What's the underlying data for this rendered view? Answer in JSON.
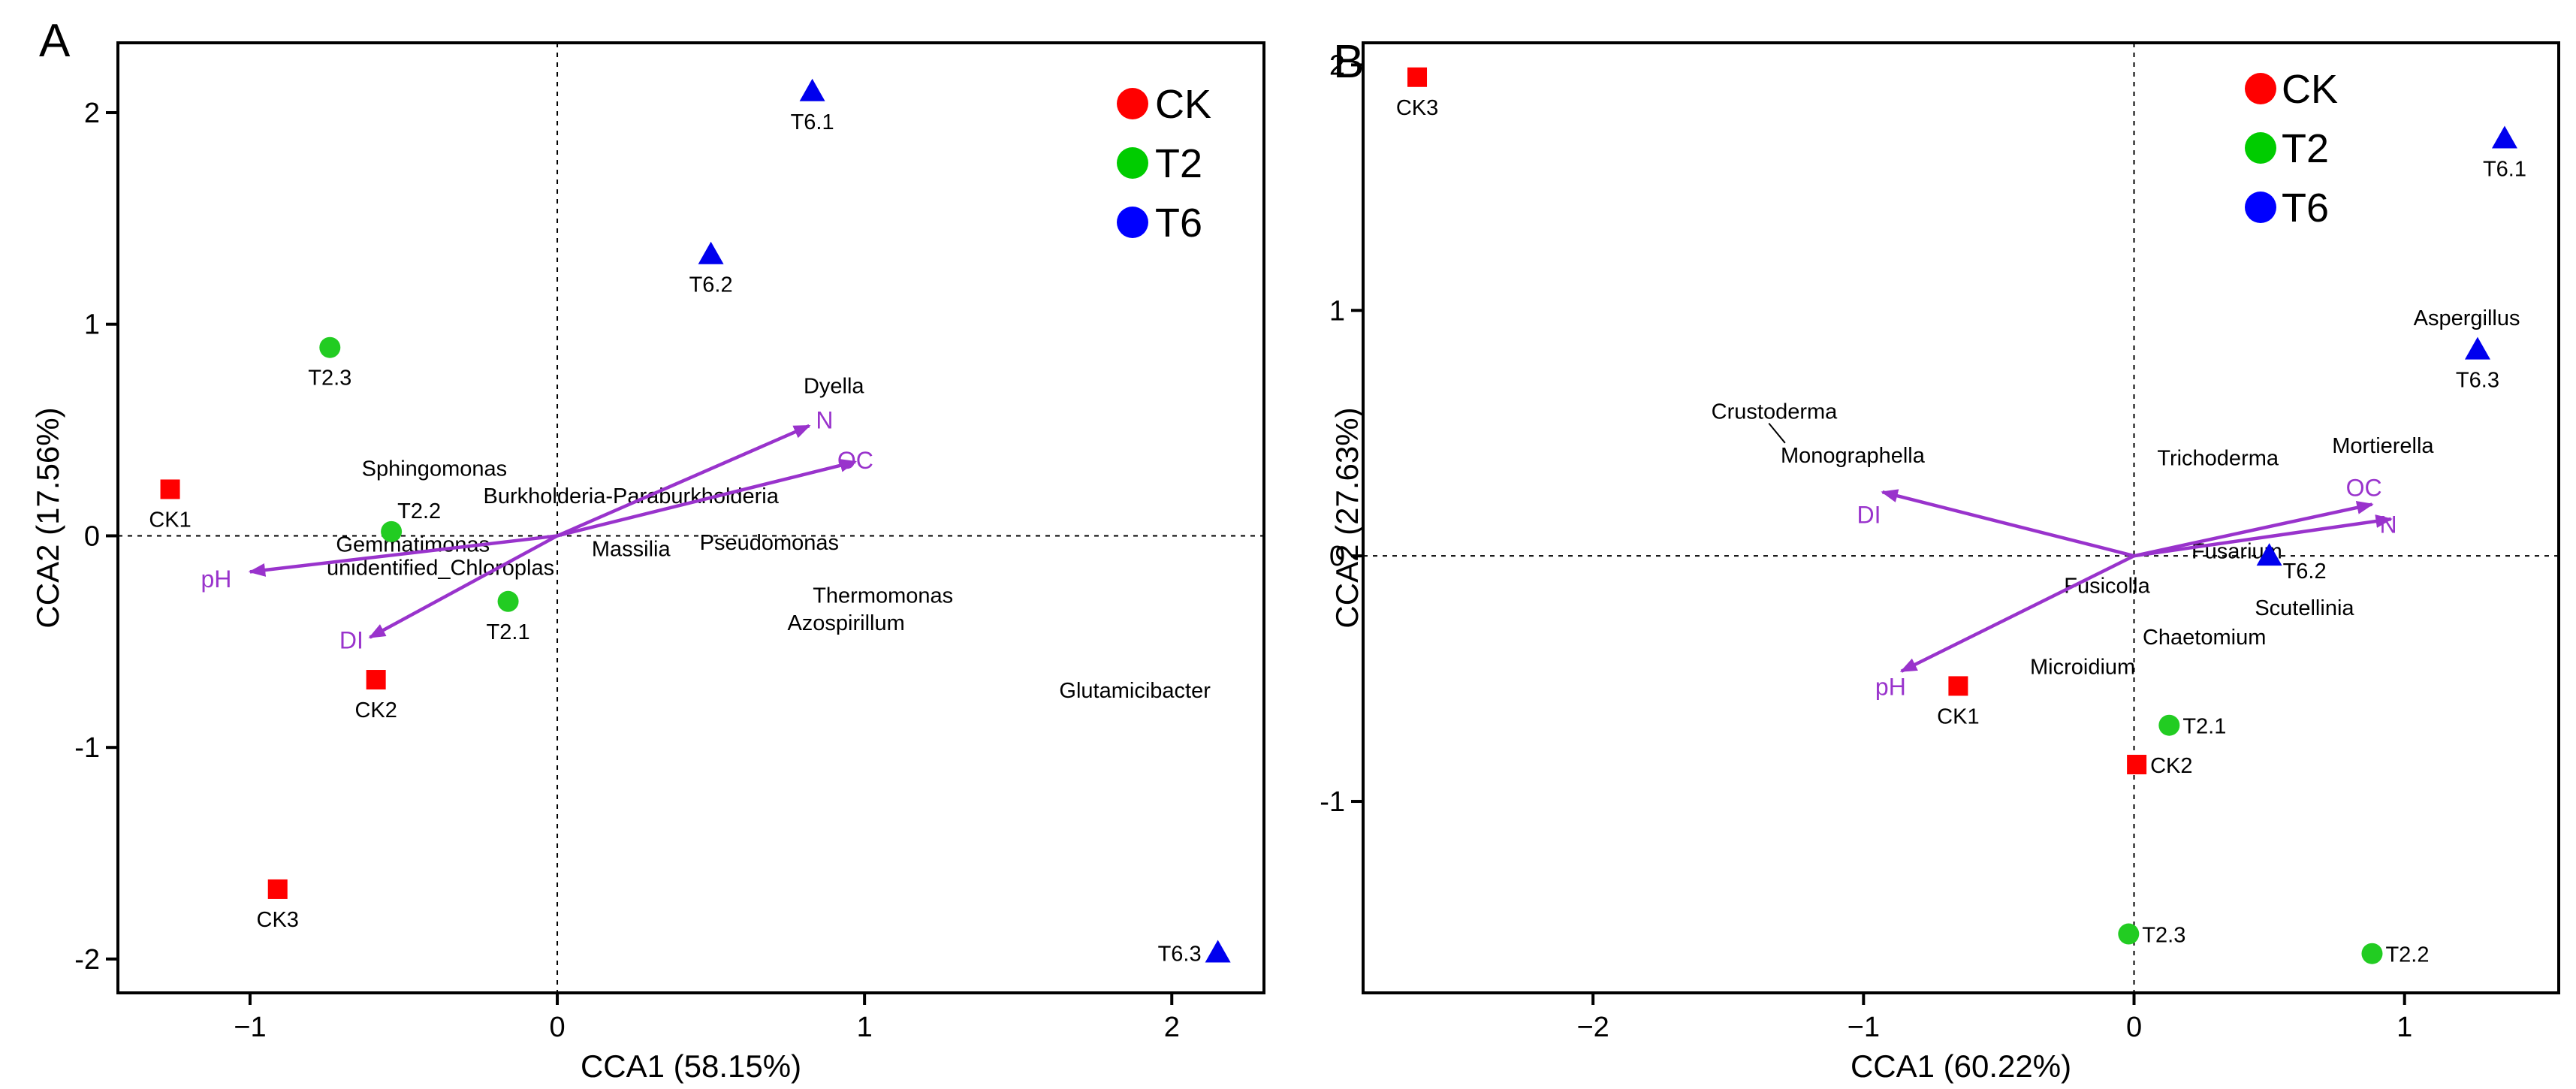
{
  "chart_data": [
    {
      "type": "scatter",
      "panel_label": "A",
      "xlabel": "CCA1 (58.15%)",
      "ylabel": "CCA2 (17.56%)",
      "xlim": [
        -1.43,
        2.3
      ],
      "ylim": [
        -2.16,
        2.33
      ],
      "xticks": [
        -1,
        0,
        1,
        2
      ],
      "yticks": [
        -2,
        -1,
        0,
        1,
        2
      ],
      "xtick_labels": [
        "−1",
        "0",
        "1",
        "2"
      ],
      "ytick_labels": [
        "-2",
        "-1",
        "0",
        "1",
        "2"
      ],
      "legend": {
        "position": "top-right",
        "entries": [
          {
            "label": "CK",
            "color": "#ff0000"
          },
          {
            "label": "T2",
            "color": "#00cc00"
          },
          {
            "label": "T6",
            "color": "#0000ff"
          }
        ]
      },
      "samples": [
        {
          "name": "CK1",
          "group": "CK",
          "shape": "square",
          "x": -1.26,
          "y": 0.22,
          "label_pos": "below"
        },
        {
          "name": "CK2",
          "group": "CK",
          "shape": "square",
          "x": -0.59,
          "y": -0.68,
          "label_pos": "below"
        },
        {
          "name": "CK3",
          "group": "CK",
          "shape": "square",
          "x": -0.91,
          "y": -1.67,
          "label_pos": "below"
        },
        {
          "name": "T2.1",
          "group": "T2",
          "shape": "circle",
          "x": -0.16,
          "y": -0.31,
          "label_pos": "below"
        },
        {
          "name": "T2.2",
          "group": "T2",
          "shape": "circle",
          "x": -0.54,
          "y": 0.02,
          "label_pos": "above-right"
        },
        {
          "name": "T2.3",
          "group": "T2",
          "shape": "circle",
          "x": -0.74,
          "y": 0.89,
          "label_pos": "below"
        },
        {
          "name": "T6.1",
          "group": "T6",
          "shape": "triangle",
          "x": 0.83,
          "y": 2.1,
          "label_pos": "below"
        },
        {
          "name": "T6.2",
          "group": "T6",
          "shape": "triangle",
          "x": 0.5,
          "y": 1.33,
          "label_pos": "below"
        },
        {
          "name": "T6.3",
          "group": "T6",
          "shape": "triangle",
          "x": 2.15,
          "y": -1.97,
          "label_pos": "left"
        }
      ],
      "arrows": [
        {
          "name": "N",
          "x": 0.82,
          "y": 0.52,
          "label_x": 0.87,
          "label_y": 0.55
        },
        {
          "name": "OC",
          "x": 0.97,
          "y": 0.35,
          "label_x": 0.97,
          "label_y": 0.36
        },
        {
          "name": "pH",
          "x": -1.0,
          "y": -0.17,
          "label_x": -1.11,
          "label_y": -0.2
        },
        {
          "name": "DI",
          "x": -0.61,
          "y": -0.48,
          "label_x": -0.67,
          "label_y": -0.49
        }
      ],
      "taxa": [
        {
          "name": "Dyella",
          "x": 0.9,
          "y": 0.71
        },
        {
          "name": "Sphingomonas",
          "x": -0.4,
          "y": 0.32
        },
        {
          "name": "Burkholderia-Paraburkholderia",
          "x": 0.24,
          "y": 0.19
        },
        {
          "name": "Gemmatimonas",
          "x": -0.47,
          "y": -0.04
        },
        {
          "name": "Massilia",
          "x": 0.24,
          "y": -0.06
        },
        {
          "name": "Pseudomonas",
          "x": 0.69,
          "y": -0.03
        },
        {
          "name": "unidentified_Chloroplas",
          "x": -0.38,
          "y": -0.15
        },
        {
          "name": "Thermomonas",
          "x": 1.06,
          "y": -0.28
        },
        {
          "name": "Azospirillum",
          "x": 0.94,
          "y": -0.41
        },
        {
          "name": "Glutamicibacter",
          "x": 1.88,
          "y": -0.73
        }
      ]
    },
    {
      "type": "scatter",
      "panel_label": "B",
      "xlabel": "CCA1 (60.22%)",
      "ylabel": "CCA2 (27.63%)",
      "xlim": [
        -2.85,
        1.57
      ],
      "ylim": [
        -1.78,
        2.09
      ],
      "xticks": [
        -2,
        -1,
        0,
        1
      ],
      "yticks": [
        -1,
        0,
        1,
        2
      ],
      "xtick_labels": [
        "−2",
        "−1",
        "0",
        "1"
      ],
      "ytick_labels": [
        "-1",
        "0",
        "1",
        "2"
      ],
      "legend": {
        "position": "top-right",
        "entries": [
          {
            "label": "CK",
            "color": "#ff0000"
          },
          {
            "label": "T2",
            "color": "#00cc00"
          },
          {
            "label": "T6",
            "color": "#0000ff"
          }
        ]
      },
      "samples": [
        {
          "name": "CK1",
          "group": "CK",
          "shape": "square",
          "x": -0.65,
          "y": -0.53,
          "label_pos": "below"
        },
        {
          "name": "CK2",
          "group": "CK",
          "shape": "square",
          "x": 0.01,
          "y": -0.85,
          "label_pos": "right"
        },
        {
          "name": "CK3",
          "group": "CK",
          "shape": "square",
          "x": -2.65,
          "y": 1.95,
          "label_pos": "below"
        },
        {
          "name": "T2.1",
          "group": "T2",
          "shape": "circle",
          "x": 0.13,
          "y": -0.69,
          "label_pos": "right"
        },
        {
          "name": "T2.2",
          "group": "T2",
          "shape": "circle",
          "x": 0.88,
          "y": -1.62,
          "label_pos": "right"
        },
        {
          "name": "T2.3",
          "group": "T2",
          "shape": "circle",
          "x": -0.02,
          "y": -1.54,
          "label_pos": "right"
        },
        {
          "name": "T6.1",
          "group": "T6",
          "shape": "triangle",
          "x": 1.37,
          "y": 1.7,
          "label_pos": "below"
        },
        {
          "name": "T6.2",
          "group": "T6",
          "shape": "triangle",
          "x": 0.5,
          "y": 0.0,
          "label_pos": "below-right"
        },
        {
          "name": "T6.3",
          "group": "T6",
          "shape": "triangle",
          "x": 1.27,
          "y": 0.84,
          "label_pos": "below"
        }
      ],
      "arrows": [
        {
          "name": "OC",
          "x": 0.88,
          "y": 0.21,
          "label_x": 0.85,
          "label_y": 0.28
        },
        {
          "name": "N",
          "x": 0.95,
          "y": 0.15,
          "label_x": 0.94,
          "label_y": 0.13
        },
        {
          "name": "DI",
          "x": -0.93,
          "y": 0.26,
          "label_x": -0.98,
          "label_y": 0.17
        },
        {
          "name": "pH",
          "x": -0.86,
          "y": -0.47,
          "label_x": -0.9,
          "label_y": -0.53
        }
      ],
      "taxa": [
        {
          "name": "Aspergillus",
          "x": 1.23,
          "y": 0.97
        },
        {
          "name": "Crustoderma",
          "x": -1.33,
          "y": 0.59
        },
        {
          "name": "Monographella",
          "x": -1.04,
          "y": 0.41
        },
        {
          "name": "Trichoderma",
          "x": 0.31,
          "y": 0.4
        },
        {
          "name": "Mortierella",
          "x": 0.92,
          "y": 0.45
        },
        {
          "name": "Fusarium",
          "x": 0.38,
          "y": 0.02
        },
        {
          "name": "Fusicolla",
          "x": -0.1,
          "y": -0.12
        },
        {
          "name": "Scutellinia",
          "x": 0.63,
          "y": -0.21
        },
        {
          "name": "Chaetomium",
          "x": 0.26,
          "y": -0.33
        },
        {
          "name": "Microidium",
          "x": -0.19,
          "y": -0.45
        }
      ],
      "leader_lines": [
        {
          "from": [
            -1.35,
            0.54
          ],
          "to": [
            -1.29,
            0.46
          ]
        }
      ]
    }
  ]
}
